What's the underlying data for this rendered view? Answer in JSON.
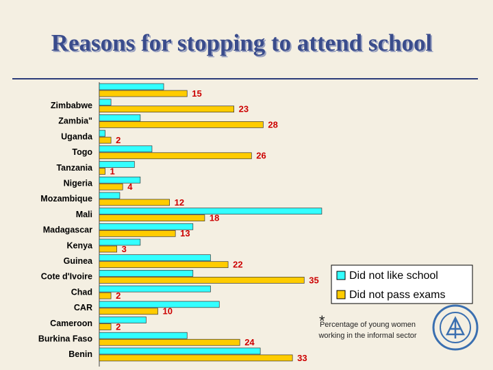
{
  "chart_data": {
    "type": "hbar",
    "title": "Reasons for stopping to attend school",
    "categories": [
      null,
      "Zimbabwe",
      "Zambia\"",
      "Uganda",
      "Togo",
      "Tanzania",
      "Nigeria",
      "Mozambique",
      "Mali",
      "Madagascar",
      "Kenya",
      "Guinea",
      "Cote d'Ivoire",
      "Chad",
      "CAR",
      "Cameroon",
      "Burkina Faso",
      "Benin"
    ],
    "series": [
      {
        "name": "Did not like school",
        "color": "#33ffff",
        "values": [
          11,
          2,
          7,
          1,
          9,
          6,
          7,
          3.5,
          38,
          16,
          7,
          19,
          16,
          19,
          20.5,
          8,
          15,
          27.5
        ]
      },
      {
        "name": "Did not pass exams",
        "color": "#ffcc00",
        "values": [
          15,
          23,
          28,
          2,
          26,
          1,
          4,
          12,
          18,
          13,
          3,
          22,
          35,
          2,
          10,
          2,
          24,
          33
        ]
      }
    ],
    "xlim": [
      0,
      40
    ],
    "legend": "right",
    "note_marker": "*",
    "note": "Percentage of young women working in the informal sector"
  }
}
